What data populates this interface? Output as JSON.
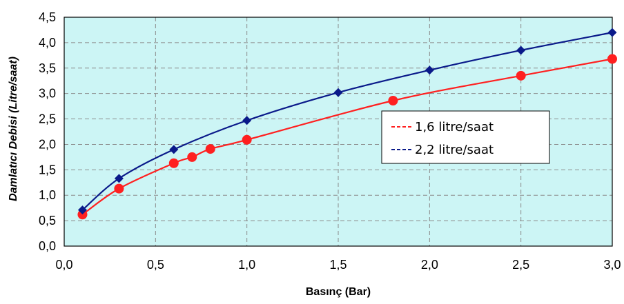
{
  "chart_data": {
    "type": "line",
    "title": "",
    "xlabel": "Basınç (Bar)",
    "ylabel": "Damlatıcı Debisi (Litre/saat)",
    "xlim": [
      0,
      3
    ],
    "ylim": [
      0,
      4.5
    ],
    "x_ticks": [
      "0,0",
      "0,5",
      "1,0",
      "1,5",
      "2,0",
      "2,5",
      "3,0"
    ],
    "y_ticks": [
      "0,0",
      "0,5",
      "1,0",
      "1,5",
      "2,0",
      "2,5",
      "3,0",
      "3,5",
      "4,0",
      "4,5"
    ],
    "grid": true,
    "legend_position": "center-right",
    "plot_background": "#ccf5f5",
    "series": [
      {
        "name": "1,6 litre/saat",
        "color": "#ff2020",
        "marker": "circle",
        "x": [
          0.1,
          0.3,
          0.6,
          0.7,
          0.8,
          1.0,
          1.8,
          2.5,
          3.0
        ],
        "y": [
          0.62,
          1.13,
          1.63,
          1.75,
          1.91,
          2.09,
          2.86,
          3.35,
          3.68
        ]
      },
      {
        "name": "2,2 litre/saat",
        "color": "#0a1a8a",
        "marker": "diamond",
        "x": [
          0.1,
          0.3,
          0.6,
          1.0,
          1.5,
          2.0,
          2.5,
          3.0
        ],
        "y": [
          0.71,
          1.33,
          1.9,
          2.47,
          3.02,
          3.46,
          3.85,
          4.2
        ]
      }
    ]
  }
}
